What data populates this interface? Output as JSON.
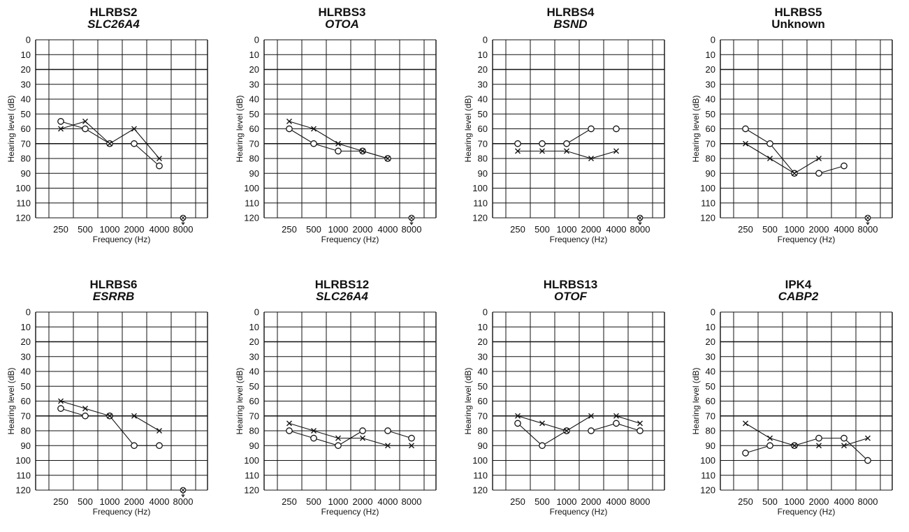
{
  "chart_data": [
    {
      "type": "line",
      "title": "HLRBS2",
      "subtitle": "SLC26A4",
      "subtitle_italic": true,
      "xlabel": "Frequency (Hz)",
      "ylabel": "Hearing level (dB)",
      "x_ticks": [
        "250",
        "500",
        "1000",
        "2000",
        "4000",
        "8000"
      ],
      "y_ticks": [
        "0",
        "10",
        "20",
        "30",
        "40",
        "50",
        "60",
        "70",
        "80",
        "90",
        "100",
        "110",
        "120"
      ],
      "ylim": [
        0,
        120
      ],
      "y_inverted": true,
      "series": [
        {
          "marker": "circle",
          "x": [
            250,
            500,
            1000,
            2000,
            4000
          ],
          "y": [
            55,
            60,
            70,
            70,
            85
          ]
        },
        {
          "marker": "cross",
          "x": [
            250,
            500,
            1000,
            2000,
            4000
          ],
          "y": [
            60,
            55,
            70,
            60,
            80
          ]
        }
      ],
      "no_response": [
        8000
      ]
    },
    {
      "type": "line",
      "title": "HLRBS3",
      "subtitle": "OTOA",
      "subtitle_italic": true,
      "xlabel": "Frequency (Hz)",
      "ylabel": "Hearing level (dB)",
      "x_ticks": [
        "250",
        "500",
        "1000",
        "2000",
        "4000",
        "8000"
      ],
      "y_ticks": [
        "0",
        "10",
        "20",
        "30",
        "40",
        "50",
        "60",
        "70",
        "80",
        "90",
        "100",
        "110",
        "120"
      ],
      "ylim": [
        0,
        120
      ],
      "y_inverted": true,
      "series": [
        {
          "marker": "circle",
          "x": [
            250,
            500,
            1000,
            2000,
            4000
          ],
          "y": [
            60,
            70,
            75,
            75,
            80
          ]
        },
        {
          "marker": "cross",
          "x": [
            250,
            500,
            1000,
            2000,
            4000
          ],
          "y": [
            55,
            60,
            70,
            75,
            80
          ]
        }
      ],
      "no_response": [
        8000
      ]
    },
    {
      "type": "line",
      "title": "HLRBS4",
      "subtitle": "BSND",
      "subtitle_italic": true,
      "xlabel": "Frequency (Hz)",
      "ylabel": "Hearing level (dB)",
      "x_ticks": [
        "250",
        "500",
        "1000",
        "2000",
        "4000",
        "8000"
      ],
      "y_ticks": [
        "0",
        "10",
        "20",
        "30",
        "40",
        "50",
        "60",
        "70",
        "80",
        "90",
        "100",
        "110",
        "120"
      ],
      "ylim": [
        0,
        120
      ],
      "y_inverted": true,
      "series": [
        {
          "marker": "circle",
          "x": [
            250,
            500,
            1000,
            2000,
            4000
          ],
          "y": [
            70,
            70,
            70,
            60,
            60
          ]
        },
        {
          "marker": "cross",
          "x": [
            250,
            500,
            1000,
            2000,
            4000
          ],
          "y": [
            75,
            75,
            75,
            80,
            75
          ]
        }
      ],
      "no_response": [
        8000
      ]
    },
    {
      "type": "line",
      "title": "HLRBS5",
      "subtitle": "Unknown",
      "subtitle_italic": false,
      "xlabel": "Frequency (Hz)",
      "ylabel": "Hearing level (dB)",
      "x_ticks": [
        "250",
        "500",
        "1000",
        "2000",
        "4000",
        "8000"
      ],
      "y_ticks": [
        "0",
        "10",
        "20",
        "30",
        "40",
        "50",
        "60",
        "70",
        "80",
        "90",
        "100",
        "110",
        "120"
      ],
      "ylim": [
        0,
        120
      ],
      "y_inverted": true,
      "series": [
        {
          "marker": "circle",
          "x": [
            250,
            500,
            1000,
            2000,
            4000
          ],
          "y": [
            60,
            70,
            90,
            90,
            85
          ]
        },
        {
          "marker": "cross",
          "x": [
            250,
            500,
            1000,
            2000
          ],
          "y": [
            70,
            80,
            90,
            80
          ]
        }
      ],
      "no_response": [
        8000
      ]
    },
    {
      "type": "line",
      "title": "HLRBS6",
      "subtitle": "ESRRB",
      "subtitle_italic": true,
      "xlabel": "Frequency (Hz)",
      "ylabel": "Hearing level (dB)",
      "x_ticks": [
        "250",
        "500",
        "1000",
        "2000",
        "4000",
        "8000"
      ],
      "y_ticks": [
        "0",
        "10",
        "20",
        "30",
        "40",
        "50",
        "60",
        "70",
        "80",
        "90",
        "100",
        "110",
        "120"
      ],
      "ylim": [
        0,
        120
      ],
      "y_inverted": true,
      "series": [
        {
          "marker": "circle",
          "x": [
            250,
            500,
            1000,
            2000,
            4000
          ],
          "y": [
            65,
            70,
            70,
            90,
            90
          ]
        },
        {
          "marker": "cross",
          "x": [
            250,
            500,
            1000,
            2000,
            4000
          ],
          "y": [
            60,
            65,
            70,
            70,
            80
          ]
        }
      ],
      "no_response": [
        8000
      ]
    },
    {
      "type": "line",
      "title": "HLRBS12",
      "subtitle": "SLC26A4",
      "subtitle_italic": true,
      "xlabel": "Frequency (Hz)",
      "ylabel": "Hearing level (dB)",
      "x_ticks": [
        "250",
        "500",
        "1000",
        "2000",
        "4000",
        "8000"
      ],
      "y_ticks": [
        "0",
        "10",
        "20",
        "30",
        "40",
        "50",
        "60",
        "70",
        "80",
        "90",
        "100",
        "110",
        "120"
      ],
      "ylim": [
        0,
        120
      ],
      "y_inverted": true,
      "series": [
        {
          "marker": "circle",
          "x": [
            250,
            500,
            1000,
            2000,
            4000,
            8000
          ],
          "y": [
            80,
            85,
            90,
            80,
            80,
            85
          ]
        },
        {
          "marker": "cross",
          "x": [
            250,
            500,
            1000,
            2000,
            4000,
            8000
          ],
          "y": [
            75,
            80,
            85,
            85,
            90,
            90
          ]
        }
      ],
      "no_response": []
    },
    {
      "type": "line",
      "title": "HLRBS13",
      "subtitle": "OTOF",
      "subtitle_italic": true,
      "xlabel": "Frequency (Hz)",
      "ylabel": "Hearing level (dB)",
      "x_ticks": [
        "250",
        "500",
        "1000",
        "2000",
        "4000",
        "8000"
      ],
      "y_ticks": [
        "0",
        "10",
        "20",
        "30",
        "40",
        "50",
        "60",
        "70",
        "80",
        "90",
        "100",
        "110",
        "120"
      ],
      "ylim": [
        0,
        120
      ],
      "y_inverted": true,
      "series": [
        {
          "marker": "circle",
          "x": [
            250,
            500,
            1000,
            2000,
            4000,
            8000
          ],
          "y": [
            75,
            90,
            80,
            80,
            75,
            80
          ]
        },
        {
          "marker": "cross",
          "x": [
            250,
            500,
            1000,
            2000,
            4000,
            8000
          ],
          "y": [
            70,
            75,
            80,
            70,
            70,
            75
          ]
        }
      ],
      "no_response": []
    },
    {
      "type": "line",
      "title": "IPK4",
      "subtitle": "CABP2",
      "subtitle_italic": true,
      "xlabel": "Frequency (Hz)",
      "ylabel": "Hearing level (dB)",
      "x_ticks": [
        "250",
        "500",
        "1000",
        "2000",
        "4000",
        "8000"
      ],
      "y_ticks": [
        "0",
        "10",
        "20",
        "30",
        "40",
        "50",
        "60",
        "70",
        "80",
        "90",
        "100",
        "110",
        "120"
      ],
      "ylim": [
        0,
        120
      ],
      "y_inverted": true,
      "series": [
        {
          "marker": "circle",
          "x": [
            250,
            500,
            1000,
            2000,
            4000,
            8000
          ],
          "y": [
            95,
            90,
            90,
            85,
            85,
            100
          ]
        },
        {
          "marker": "cross",
          "x": [
            250,
            500,
            1000,
            2000,
            4000,
            8000
          ],
          "y": [
            75,
            85,
            90,
            90,
            90,
            85
          ]
        }
      ],
      "no_response": []
    }
  ]
}
